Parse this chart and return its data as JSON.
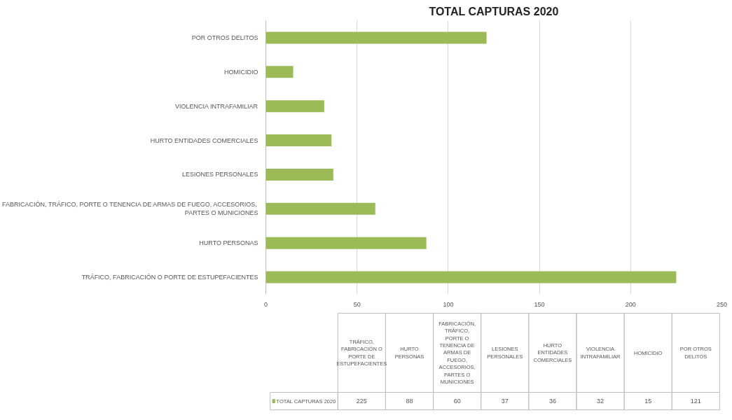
{
  "chart_data": [
    {
      "type": "bar",
      "orientation": "horizontal",
      "title": "TOTAL CAPTURAS 2020",
      "categories": [
        "POR OTROS DELITOS",
        "HOMICIDIO",
        "VIOLENCIA INTRAFAMILIAR",
        "HURTO ENTIDADES COMERCIALES",
        "LESIONES PERSONALES",
        "FABRICACIÓN, TRÁFICO, PORTE O TENENCIA DE ARMAS DE FUEGO, ACCESORIOS, PARTES O MUNICIONES",
        "HURTO PERSONAS",
        "TRÁFICO, FABRICACIÓN O PORTE DE ESTUPEFACIENTES"
      ],
      "series": [
        {
          "color": "#9bbb59",
          "values": [
            121,
            15,
            32,
            36,
            37,
            60,
            88,
            225
          ]
        }
      ],
      "xlim": [
        0,
        250
      ],
      "xticks": [
        0,
        50,
        100,
        150,
        200,
        250
      ],
      "grid": "x"
    },
    {
      "type": "other",
      "categories": [
        "TRÁFICO, FABRICACIÓN O PORTE DE ESTUPEFACIENTES",
        "HURTO PERSONAS",
        "FABRICACIÓN, TRÁFICO, PORTE O TENENCIA DE ARMAS DE FUEGO, ACCESORIOS, PARTES O MUNICIONES",
        "LESIONES PERSONALES",
        "HURTO ENTIDADES COMERCIALES",
        "VIOLENCIA INTRAFAMILIAR",
        "HOMICIDIO",
        "POR OTROS DELITOS"
      ],
      "series": [
        {
          "name": "TOTAL CAPTURAS 2020",
          "color": "#9bbb59",
          "values": [
            225,
            88,
            60,
            37,
            36,
            32,
            15,
            121
          ]
        }
      ],
      "data_labels": true,
      "legend": "left"
    }
  ]
}
